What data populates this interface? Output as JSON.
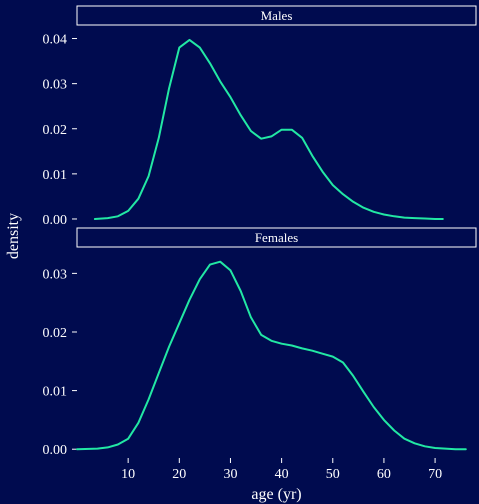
{
  "chart_data": {
    "type": "line",
    "xlabel": "age (yr)",
    "ylabel": "density",
    "xlim": [
      0,
      78
    ],
    "x_ticks": [
      10,
      20,
      30,
      40,
      50,
      60,
      70
    ],
    "line_color": "#22e8a4",
    "background_color": "#000b4f",
    "grid": false,
    "panels": [
      {
        "name": "Males",
        "ylim": [
          -0.002,
          0.043
        ],
        "y_ticks": [
          0.0,
          0.01,
          0.02,
          0.03,
          0.04
        ],
        "y_tick_labels": [
          "0.00",
          "0.01",
          "0.02",
          "0.03",
          "0.04"
        ],
        "series": [
          {
            "x": [
              3.5,
              6,
              8,
              10,
              12,
              14,
              16,
              18,
              20,
              22,
              24,
              26,
              28,
              30,
              32,
              34,
              36,
              38,
              40,
              42,
              44,
              46,
              48,
              50,
              52,
              54,
              56,
              58,
              60,
              62,
              64,
              66,
              68,
              70,
              71.5
            ],
            "y": [
              0.0,
              0.0002,
              0.0006,
              0.0018,
              0.0045,
              0.0095,
              0.018,
              0.029,
              0.038,
              0.0397,
              0.038,
              0.0345,
              0.0305,
              0.027,
              0.023,
              0.0195,
              0.0178,
              0.0183,
              0.0198,
              0.0198,
              0.018,
              0.014,
              0.0105,
              0.0075,
              0.0055,
              0.0038,
              0.0025,
              0.0016,
              0.001,
              0.0006,
              0.0003,
              0.0002,
              0.0001,
              0.0,
              0.0
            ]
          }
        ]
      },
      {
        "name": "Females",
        "ylim": [
          -0.0015,
          0.0345
        ],
        "y_ticks": [
          0.0,
          0.01,
          0.02,
          0.03
        ],
        "y_tick_labels": [
          "0.00",
          "0.01",
          "0.02",
          "0.03"
        ],
        "series": [
          {
            "x": [
              0,
              4,
              6,
              8,
              10,
              12,
              14,
              16,
              18,
              20,
              22,
              24,
              26,
              28,
              30,
              32,
              34,
              36,
              38,
              40,
              42,
              44,
              46,
              48,
              50,
              52,
              54,
              56,
              58,
              60,
              62,
              64,
              66,
              68,
              70,
              72,
              74,
              76
            ],
            "y": [
              0.0,
              0.0001,
              0.0003,
              0.0008,
              0.0018,
              0.0045,
              0.0085,
              0.013,
              0.0175,
              0.0215,
              0.0255,
              0.029,
              0.0315,
              0.032,
              0.0305,
              0.027,
              0.0225,
              0.0195,
              0.0185,
              0.018,
              0.0177,
              0.0172,
              0.0168,
              0.0163,
              0.0158,
              0.0148,
              0.0125,
              0.0098,
              0.0072,
              0.005,
              0.0032,
              0.0018,
              0.001,
              0.0005,
              0.0002,
              0.0001,
              0.0,
              0.0
            ]
          }
        ]
      }
    ]
  }
}
